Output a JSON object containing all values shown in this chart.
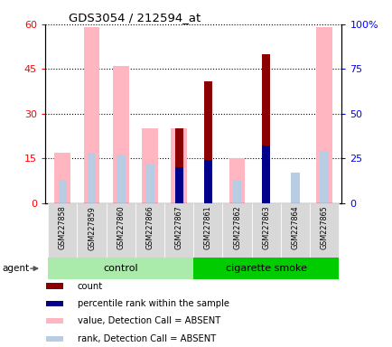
{
  "title": "GDS3054 / 212594_at",
  "samples": [
    "GSM227858",
    "GSM227859",
    "GSM227860",
    "GSM227866",
    "GSM227867",
    "GSM227861",
    "GSM227862",
    "GSM227863",
    "GSM227864",
    "GSM227865"
  ],
  "groups": [
    "control",
    "control",
    "control",
    "control",
    "control",
    "cigarette smoke",
    "cigarette smoke",
    "cigarette smoke",
    "cigarette smoke",
    "cigarette smoke"
  ],
  "count_values": [
    0,
    0,
    0,
    0,
    25,
    41,
    0,
    50,
    0,
    0
  ],
  "rank_values": [
    0,
    0,
    0,
    0,
    20,
    24,
    0,
    32,
    0,
    0
  ],
  "value_absent": [
    17,
    59,
    46,
    25,
    25,
    0,
    15,
    0,
    0,
    59
  ],
  "rank_absent": [
    13,
    28,
    27,
    22,
    0,
    0,
    13,
    0,
    17,
    29
  ],
  "ylim_left": [
    0,
    60
  ],
  "ylim_right": [
    0,
    100
  ],
  "yticks_left": [
    0,
    15,
    30,
    45,
    60
  ],
  "yticks_right": [
    0,
    25,
    50,
    75,
    100
  ],
  "yticklabels_right": [
    "0",
    "25",
    "50",
    "75",
    "100%"
  ],
  "color_count": "#8B0000",
  "color_rank": "#00008B",
  "color_value_absent": "#FFB6C1",
  "color_rank_absent": "#B8CCE4",
  "control_color_light": "#CCFFCC",
  "control_color_dark": "#00CC00",
  "smoke_color": "#00CC00",
  "smoke_color_light": "#CCFFCC",
  "agent_label": "agent",
  "legend_items": [
    "count",
    "percentile rank within the sample",
    "value, Detection Call = ABSENT",
    "rank, Detection Call = ABSENT"
  ],
  "legend_colors": [
    "#8B0000",
    "#00008B",
    "#FFB6C1",
    "#B8CCE4"
  ]
}
